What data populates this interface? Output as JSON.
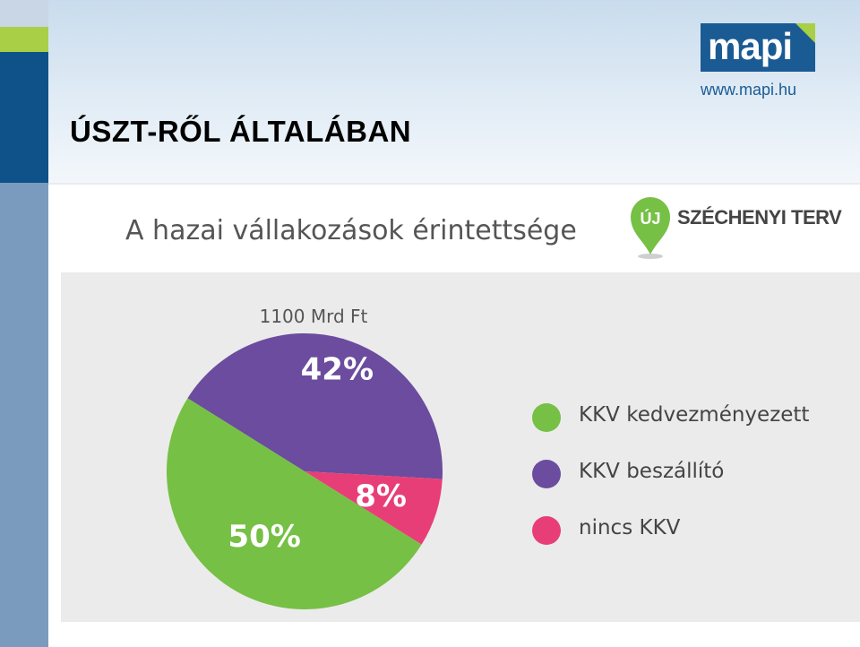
{
  "header": {
    "title": "ÚSZT-RŐL ÁLTALÁBAN",
    "logo_text": "mapi",
    "logo_url": "www.mapi.hu"
  },
  "szechenyi_logo": {
    "badge_text": "ÚJ",
    "name": "SZÉCHENYI TERV"
  },
  "colors": {
    "green": "#76c045",
    "purple": "#6b4c9e",
    "pink": "#e83e78"
  },
  "chart_data": {
    "type": "pie",
    "title": "A hazai vállakozások érintettsége",
    "total_label": "1100 Mrd Ft",
    "series": [
      {
        "name": "KKV kedvezményezett",
        "value": 50,
        "label": "50%"
      },
      {
        "name": "KKV beszállító",
        "value": 42,
        "label": "42%"
      },
      {
        "name": "nincs KKV",
        "value": 8,
        "label": "8%"
      }
    ],
    "legend_position": "right"
  }
}
